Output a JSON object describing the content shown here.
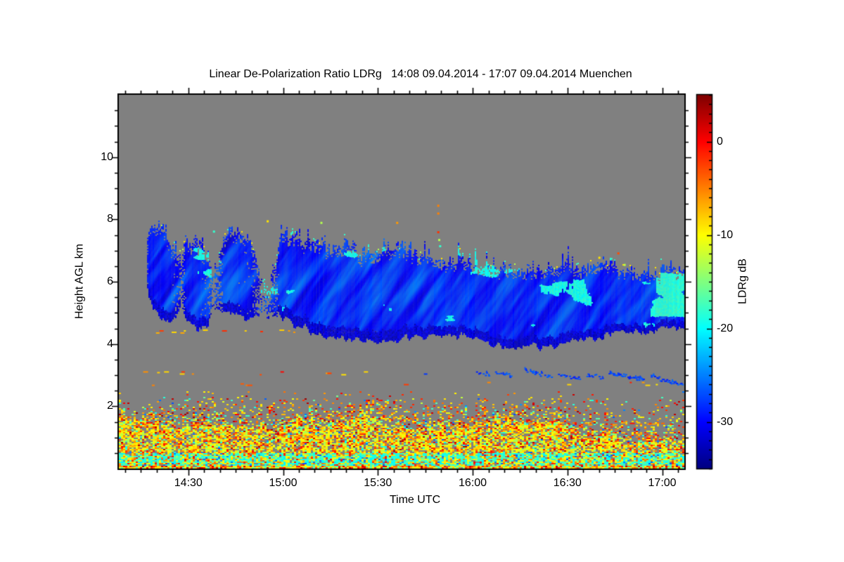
{
  "title": "Linear De-Polarization Ratio LDRg   14:08 09.04.2014 - 17:07 09.04.2014 Muenchen",
  "colors": {
    "page_bg": "#ffffff",
    "no_signal_gray": "#808080",
    "axis": "#000000",
    "text": "#000000"
  },
  "chart_data": {
    "type": "heatmap",
    "title": "Linear De-Polarization Ratio LDRg   14:08 09.04.2014 - 17:07 09.04.2014 Muenchen",
    "xlabel": "Time UTC",
    "ylabel": "Height AGL km",
    "site": "Muenchen",
    "date": "09.04.2014",
    "x_start": "14:08",
    "x_end": "17:07",
    "x_ticks": [
      "14:30",
      "15:00",
      "15:30",
      "16:00",
      "16:30",
      "17:00"
    ],
    "x_minor_step_min": 5,
    "y_range_km": [
      0,
      12
    ],
    "y_ticks": [
      2,
      4,
      6,
      8,
      10
    ],
    "y_minor_step_km": 0.5,
    "grid": false,
    "colorbar": {
      "label": "LDRg dB",
      "ticks": [
        0,
        -10,
        -20,
        -30
      ],
      "range_top": 5,
      "range_bottom": -35,
      "minor_step_db": 1,
      "colormap": "jet"
    },
    "features": {
      "cloud_band": {
        "description": "Ice cloud / fallstreak band, LDRg mostly -32..-24 dB (blue) with cyan (-20 dB) patches; dark-blue fringe at base; spans 14:17 to 17:07 between ~3.9 and ~7.8 km",
        "profile": [
          [
            0,
            0,
            0,
            0
          ],
          [
            8.5,
            7.7,
            6.8,
            0
          ],
          [
            9,
            7.7,
            5.6,
            1
          ],
          [
            12,
            7.75,
            4.95,
            1
          ],
          [
            16,
            7.3,
            4.8,
            1
          ],
          [
            18.5,
            7.0,
            5.0,
            0.85
          ],
          [
            19.5,
            6.6,
            5.3,
            0.35
          ],
          [
            21,
            7.5,
            4.75,
            1
          ],
          [
            25,
            7.2,
            4.5,
            1
          ],
          [
            28,
            6.8,
            4.55,
            0.9
          ],
          [
            29.5,
            6.2,
            5.1,
            0.3
          ],
          [
            31,
            6.4,
            5.1,
            0.5
          ],
          [
            33,
            7.5,
            5.15,
            1
          ],
          [
            37,
            7.65,
            4.95,
            1
          ],
          [
            42,
            7.2,
            4.9,
            0.95
          ],
          [
            44.5,
            6.3,
            4.95,
            0.3
          ],
          [
            47,
            5.8,
            4.8,
            0.35
          ],
          [
            49.5,
            6.4,
            4.9,
            0.7
          ],
          [
            51,
            7.6,
            4.95,
            1
          ],
          [
            55,
            7.5,
            4.6,
            1
          ],
          [
            60,
            7.2,
            4.45,
            1
          ],
          [
            66,
            7.1,
            4.3,
            1
          ],
          [
            72,
            7.2,
            4.2,
            1
          ],
          [
            78,
            6.9,
            4.15,
            1
          ],
          [
            84,
            7.0,
            4.1,
            1
          ],
          [
            89,
            7.1,
            4.2,
            1
          ],
          [
            95,
            6.85,
            4.25,
            1
          ],
          [
            101,
            6.6,
            4.3,
            1
          ],
          [
            107,
            6.7,
            4.3,
            1
          ],
          [
            113,
            6.6,
            4.2,
            1
          ],
          [
            119,
            6.45,
            4.0,
            1
          ],
          [
            125,
            6.3,
            3.9,
            1
          ],
          [
            131,
            6.5,
            3.95,
            1
          ],
          [
            137,
            6.4,
            4.0,
            1
          ],
          [
            143,
            6.55,
            4.1,
            1
          ],
          [
            149,
            6.4,
            4.2,
            1
          ],
          [
            155,
            6.65,
            4.3,
            1
          ],
          [
            161,
            6.3,
            4.4,
            1
          ],
          [
            167,
            6.2,
            4.45,
            1
          ],
          [
            173,
            6.45,
            4.5,
            1
          ],
          [
            179,
            6.35,
            4.5,
            1
          ]
        ],
        "cyan_patch_right_edge": {
          "t_range": [
            168,
            179
          ],
          "h_range": [
            4.9,
            6.3
          ],
          "value_db": -19.5
        }
      },
      "boundary_layer": {
        "description": "Aerosol/insect speckle below ~2.4 km: yellow/orange (-10..-4 dB) with red (+0..-3) and green dots, turquoise band (-21..-16 dB) below ~0.5 km, dense mixed speckle at surface",
        "top_env_km": [
          [
            0,
            1.6
          ],
          [
            10,
            1.45
          ],
          [
            20,
            1.3
          ],
          [
            30,
            1.45
          ],
          [
            40,
            1.3
          ],
          [
            50,
            1.4
          ],
          [
            57,
            1.6
          ],
          [
            63,
            1.4
          ],
          [
            70,
            1.5
          ],
          [
            78,
            1.7
          ],
          [
            85,
            1.5
          ],
          [
            92,
            1.3
          ],
          [
            100,
            1.45
          ],
          [
            108,
            1.3
          ],
          [
            115,
            1.5
          ],
          [
            122,
            1.6
          ],
          [
            130,
            1.4
          ],
          [
            138,
            1.5
          ],
          [
            145,
            1.1
          ],
          [
            152,
            0.95
          ],
          [
            158,
            1.05
          ],
          [
            165,
            0.85
          ],
          [
            172,
            0.95
          ],
          [
            179,
            1.0
          ]
        ],
        "speckle_top_km": 2.45,
        "cyan_band_top_km": 0.5
      },
      "thin_layers": [
        {
          "height_km": 4.42,
          "t_range": [
            9,
            84
          ],
          "density": 0.13,
          "values": [
            -9,
            -6,
            -2
          ]
        },
        {
          "height_km": 4.42,
          "t_range": [
            66,
            75
          ],
          "density": 0.85,
          "values": [
            -9,
            -8,
            -7
          ]
        },
        {
          "height_km": 4.42,
          "t_range": [
            79,
            82
          ],
          "density": 0.7,
          "values": [
            -9,
            -7
          ]
        },
        {
          "height_km": 3.08,
          "t_range": [
            0,
            78
          ],
          "density": 0.11,
          "values": [
            -3,
            -6,
            -1,
            -8
          ]
        },
        {
          "height_km": 3.08,
          "t_range": [
            96,
            110
          ],
          "density": 0.12,
          "values": [
            -28,
            -27
          ]
        },
        {
          "height_km": 2.74,
          "t_range": [
            0,
            42
          ],
          "density": 0.08,
          "values": [
            -6,
            -4
          ]
        },
        {
          "height_km": 2.74,
          "t_range": [
            88,
            172
          ],
          "density": 0.06,
          "values": [
            -6,
            -2,
            -9
          ]
        },
        {
          "height_km": 1.45,
          "t_range": [
            126,
            179
          ],
          "density": 0.2,
          "values": [
            -6,
            -3,
            -9,
            -1
          ]
        }
      ],
      "dark_blue_patches": [
        [
          112,
          117,
          3.12,
          3.05,
          0.5
        ],
        [
          118,
          124,
          3.1,
          3.0,
          0.6
        ],
        [
          128,
          137,
          3.18,
          2.95,
          0.8
        ],
        [
          139,
          146,
          3.05,
          2.9,
          0.7
        ],
        [
          148,
          153,
          3.02,
          2.95,
          0.6
        ],
        [
          155,
          166,
          3.08,
          2.88,
          0.75
        ],
        [
          168,
          179,
          2.98,
          2.68,
          0.85
        ]
      ],
      "isolated_dots": [
        [
          101,
          8.45,
          -5
        ],
        [
          101,
          8.2,
          -5
        ],
        [
          101,
          7.6,
          -2
        ],
        [
          101.3,
          7.35,
          -13
        ],
        [
          101.6,
          7.15,
          -18
        ],
        [
          117,
          6.5,
          -27
        ],
        [
          119,
          6.45,
          -27
        ],
        [
          122,
          6.42,
          -26
        ],
        [
          152,
          6.78,
          -9
        ],
        [
          158,
          6.92,
          -3
        ],
        [
          160,
          6.55,
          -13
        ],
        [
          47,
          7.95,
          -9
        ],
        [
          30,
          7.62,
          -18
        ],
        [
          88,
          7.9,
          -6
        ],
        [
          64,
          7.9,
          -13
        ]
      ]
    }
  }
}
